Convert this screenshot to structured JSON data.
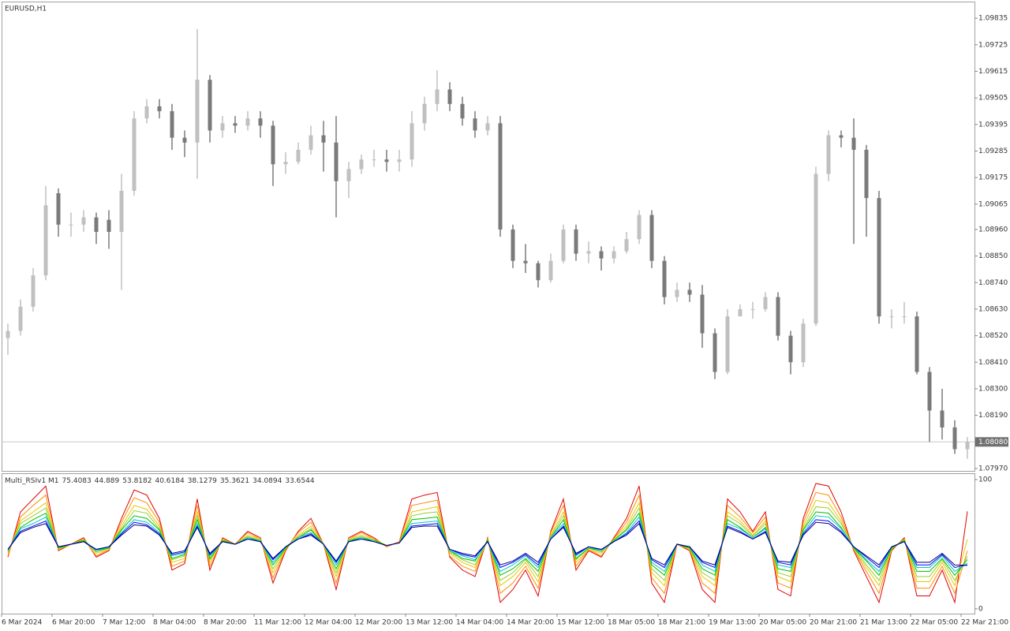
{
  "chart_data": [
    {
      "type": "candlestick",
      "title": "EURUSD,H1",
      "up_color": "#c0c0c0",
      "down_color": "#7a7a7a",
      "grid": false,
      "categories": [
        "6 Mar 2024",
        null,
        null,
        null,
        "6 Mar 20:00",
        null,
        null,
        null,
        "7 Mar 12:00",
        null,
        null,
        null,
        "8 Mar 04:00",
        null,
        null,
        null,
        "8 Mar 20:00",
        null,
        null,
        null,
        "11 Mar 12:00",
        null,
        null,
        null,
        "12 Mar 04:00",
        null,
        null,
        null,
        "12 Mar 20:00",
        null,
        null,
        null,
        "13 Mar 12:00",
        null,
        null,
        null,
        "14 Mar 04:00",
        null,
        null,
        null,
        "14 Mar 20:00",
        null,
        null,
        null,
        "15 Mar 12:00",
        null,
        null,
        null,
        "18 Mar 05:00",
        null,
        null,
        null,
        "18 Mar 21:00",
        null,
        null,
        null,
        "19 Mar 13:00",
        null,
        null,
        null,
        "20 Mar 05:00",
        null,
        null,
        null,
        "20 Mar 21:00",
        null,
        null,
        null,
        "21 Mar 13:00",
        null,
        null,
        null,
        "22 Mar 05:00",
        null,
        null,
        null,
        "22 Mar 21:00"
      ],
      "open": [
        1.0851,
        1.0854,
        1.0864,
        1.0877,
        1.0911,
        1.0898,
        1.0898,
        1.0901,
        1.09,
        1.0895,
        1.0912,
        1.0942,
        1.0947,
        1.0945,
        1.0934,
        1.0932,
        1.0958,
        1.0937,
        1.094,
        1.0939,
        1.0942,
        1.0939,
        1.0923,
        1.0924,
        1.0929,
        1.0935,
        1.0932,
        1.0916,
        1.0921,
        1.0925,
        1.0925,
        1.0924,
        1.0925,
        1.094,
        1.0948,
        1.0954,
        1.0948,
        1.0942,
        1.0937,
        1.094,
        1.0896,
        1.0883,
        1.0882,
        1.0875,
        1.0883,
        1.0896,
        1.0886,
        1.0887,
        1.0884,
        1.0887,
        1.0892,
        1.0902,
        1.0883,
        1.0868,
        1.0871,
        1.0869,
        1.0853,
        1.0837,
        1.086,
        1.0863,
        1.0863,
        1.0868,
        1.0852,
        1.0841,
        1.0857,
        1.0919,
        1.0935,
        1.0934,
        1.0929,
        1.0909,
        1.086,
        1.086,
        1.086,
        1.0837,
        1.0821,
        1.0814,
        1.0805
      ],
      "high": [
        1.0857,
        1.0867,
        1.088,
        1.0914,
        1.0913,
        1.0903,
        1.0904,
        1.0903,
        1.0904,
        1.0919,
        1.0945,
        1.095,
        1.095,
        1.0948,
        1.0937,
        1.0979,
        1.096,
        1.0943,
        1.0943,
        1.0945,
        1.0945,
        1.0941,
        1.0928,
        1.0932,
        1.0939,
        1.0941,
        1.0943,
        1.0924,
        1.0927,
        1.0929,
        1.0929,
        1.0929,
        1.0945,
        1.0951,
        1.0962,
        1.0957,
        1.0951,
        1.0945,
        1.0943,
        1.0943,
        1.0898,
        1.089,
        1.0883,
        1.0886,
        1.0898,
        1.0898,
        1.0891,
        1.0889,
        1.0889,
        1.0895,
        1.0904,
        1.0904,
        1.0885,
        1.0874,
        1.0874,
        1.0873,
        1.0855,
        1.0863,
        1.0865,
        1.0866,
        1.087,
        1.087,
        1.0854,
        1.0859,
        1.0922,
        1.0937,
        1.0937,
        1.0942,
        1.0931,
        1.0912,
        1.0863,
        1.0866,
        1.0862,
        1.0839,
        1.083,
        1.0817,
        1.081
      ],
      "low": [
        1.0844,
        1.0852,
        1.0862,
        1.0875,
        1.0893,
        1.0893,
        1.0895,
        1.089,
        1.0888,
        1.0871,
        1.091,
        1.094,
        1.0942,
        1.0929,
        1.0926,
        1.0917,
        1.0932,
        1.0934,
        1.0936,
        1.0937,
        1.0934,
        1.0914,
        1.0919,
        1.0923,
        1.0927,
        1.092,
        1.0901,
        1.0909,
        1.0919,
        1.0922,
        1.092,
        1.092,
        1.0922,
        1.0937,
        1.0945,
        1.0945,
        1.0939,
        1.0934,
        1.0935,
        1.0893,
        1.088,
        1.0878,
        1.0872,
        1.0874,
        1.0882,
        1.0883,
        1.0882,
        1.0879,
        1.0882,
        1.0886,
        1.089,
        1.088,
        1.0865,
        1.0866,
        1.0866,
        1.0847,
        1.0834,
        1.0836,
        1.086,
        1.0859,
        1.0862,
        1.085,
        1.0836,
        1.0839,
        1.0856,
        1.0916,
        1.093,
        1.089,
        1.0893,
        1.0857,
        1.0855,
        1.0857,
        1.0836,
        1.0808,
        1.0809,
        1.0803,
        1.0801
      ],
      "close": [
        1.0854,
        1.0864,
        1.0877,
        1.0906,
        1.0898,
        1.0898,
        1.0901,
        1.0895,
        1.0895,
        1.0912,
        1.0942,
        1.0947,
        1.0945,
        1.0934,
        1.0932,
        1.0958,
        1.0937,
        1.094,
        1.0939,
        1.0942,
        1.0939,
        1.0923,
        1.0924,
        1.0929,
        1.0935,
        1.0932,
        1.0916,
        1.0921,
        1.0925,
        1.0925,
        1.0924,
        1.0925,
        1.094,
        1.0948,
        1.0954,
        1.0948,
        1.0942,
        1.0937,
        1.094,
        1.0896,
        1.0883,
        1.0882,
        1.0875,
        1.0883,
        1.0896,
        1.0886,
        1.0887,
        1.0884,
        1.0887,
        1.0892,
        1.0902,
        1.0883,
        1.0868,
        1.0871,
        1.0869,
        1.0853,
        1.0837,
        1.086,
        1.0863,
        1.0863,
        1.0868,
        1.0852,
        1.0841,
        1.0857,
        1.0919,
        1.0935,
        1.0934,
        1.0929,
        1.0909,
        1.086,
        1.086,
        1.086,
        1.0837,
        1.0821,
        1.0814,
        1.0805,
        1.0808
      ],
      "ylim": [
        1.0796,
        1.09904
      ],
      "yticks": [
        {
          "value": 1.09835,
          "label": "1.09835"
        },
        {
          "value": 1.09725,
          "label": "1.09725"
        },
        {
          "value": 1.09615,
          "label": "1.09615"
        },
        {
          "value": 1.09505,
          "label": "1.09505"
        },
        {
          "value": 1.09395,
          "label": "1.09395"
        },
        {
          "value": 1.09285,
          "label": "1.09285"
        },
        {
          "value": 1.09175,
          "label": "1.09175"
        },
        {
          "value": 1.09065,
          "label": "1.09065"
        },
        {
          "value": 1.0896,
          "label": "1.08960"
        },
        {
          "value": 1.0885,
          "label": "1.08850"
        },
        {
          "value": 1.0874,
          "label": "1.08740"
        },
        {
          "value": 1.0863,
          "label": "1.08630"
        },
        {
          "value": 1.0852,
          "label": "1.08520"
        },
        {
          "value": 1.0841,
          "label": "1.08410"
        },
        {
          "value": 1.083,
          "label": "1.08300"
        },
        {
          "value": 1.0819,
          "label": "1.08190"
        },
        {
          "value": 1.0797,
          "label": "1.07970"
        }
      ],
      "current_price": {
        "value": 1.0808,
        "label": "1.08080"
      }
    },
    {
      "type": "line",
      "title": "Multi_RSIv1 M1",
      "ylim": [
        -3.7,
        104.9
      ],
      "yticks": [
        100,
        0
      ],
      "series": [
        {
          "color": "#e00000",
          "values": [
            40,
            75,
            85,
            95,
            45,
            50,
            55,
            40,
            45,
            70,
            92,
            88,
            70,
            30,
            35,
            85,
            30,
            55,
            50,
            60,
            55,
            20,
            45,
            60,
            70,
            50,
            15,
            55,
            60,
            55,
            48,
            52,
            85,
            88,
            90,
            40,
            30,
            25,
            55,
            5,
            15,
            30,
            10,
            60,
            85,
            30,
            45,
            40,
            55,
            70,
            95,
            20,
            5,
            50,
            45,
            15,
            5,
            85,
            75,
            60,
            75,
            15,
            10,
            70,
            97,
            95,
            75,
            45,
            25,
            5,
            45,
            55,
            10,
            10,
            30,
            5,
            75.4083
          ]
        },
        {
          "color": "#ff8c00",
          "values": [
            41,
            71,
            80,
            88,
            46,
            50,
            54,
            41,
            46,
            67,
            86,
            82,
            67,
            33,
            37,
            80,
            33,
            54,
            50,
            59,
            54,
            24,
            46,
            59,
            67,
            50,
            20,
            54,
            59,
            54,
            48,
            52,
            80,
            82,
            84,
            41,
            33,
            29,
            54,
            12,
            20,
            33,
            16,
            59,
            80,
            33,
            46,
            41,
            54,
            67,
            88,
            24,
            12,
            50,
            46,
            20,
            12,
            80,
            71,
            59,
            71,
            20,
            16,
            67,
            90,
            88,
            71,
            46,
            29,
            12,
            46,
            54,
            16,
            16,
            33,
            12,
            44.889
          ]
        },
        {
          "color": "#e6c800",
          "values": [
            43,
            68,
            75,
            82,
            46,
            50,
            54,
            43,
            46,
            64,
            80,
            77,
            64,
            36,
            39,
            75,
            36,
            54,
            50,
            57,
            54,
            28,
            46,
            57,
            64,
            50,
            25,
            54,
            57,
            54,
            49,
            51,
            75,
            77,
            79,
            43,
            36,
            32,
            54,
            18,
            25,
            36,
            21,
            57,
            75,
            36,
            46,
            43,
            54,
            64,
            82,
            28,
            18,
            50,
            46,
            25,
            18,
            75,
            68,
            57,
            68,
            25,
            21,
            64,
            84,
            82,
            68,
            46,
            32,
            18,
            46,
            54,
            21,
            21,
            36,
            18,
            53.8182
          ]
        },
        {
          "color": "#9acd32",
          "values": [
            44,
            66,
            72,
            78,
            47,
            50,
            53,
            44,
            47,
            62,
            76,
            74,
            62,
            38,
            41,
            72,
            38,
            53,
            50,
            56,
            53,
            31,
            47,
            56,
            62,
            50,
            28,
            53,
            56,
            53,
            49,
            51,
            72,
            74,
            75,
            44,
            38,
            34,
            53,
            22,
            28,
            38,
            25,
            56,
            72,
            38,
            47,
            44,
            53,
            62,
            78,
            31,
            22,
            50,
            47,
            28,
            22,
            72,
            66,
            56,
            66,
            28,
            25,
            62,
            79,
            78,
            66,
            47,
            34,
            22,
            47,
            53,
            25,
            25,
            38,
            22,
            40.6184
          ]
        },
        {
          "color": "#00c000",
          "values": [
            45,
            63,
            69,
            74,
            47,
            50,
            53,
            45,
            47,
            61,
            72,
            70,
            61,
            39,
            42,
            69,
            39,
            53,
            50,
            55,
            53,
            34,
            47,
            55,
            61,
            50,
            31,
            53,
            55,
            53,
            49,
            51,
            69,
            70,
            71,
            45,
            39,
            37,
            53,
            26,
            31,
            39,
            29,
            55,
            69,
            39,
            47,
            45,
            53,
            61,
            74,
            34,
            26,
            50,
            47,
            31,
            26,
            69,
            63,
            55,
            63,
            31,
            29,
            61,
            75,
            74,
            63,
            47,
            37,
            26,
            47,
            53,
            29,
            29,
            39,
            26,
            38.1279
          ]
        },
        {
          "color": "#00c8c8",
          "values": [
            45,
            62,
            66,
            71,
            48,
            50,
            52,
            45,
            48,
            59,
            69,
            67,
            59,
            41,
            43,
            66,
            41,
            52,
            50,
            55,
            52,
            36,
            48,
            55,
            59,
            50,
            34,
            52,
            55,
            52,
            49,
            51,
            66,
            67,
            68,
            45,
            41,
            38,
            52,
            29,
            34,
            41,
            32,
            55,
            66,
            41,
            48,
            45,
            52,
            59,
            71,
            36,
            29,
            50,
            48,
            34,
            29,
            66,
            62,
            55,
            62,
            34,
            32,
            59,
            72,
            71,
            62,
            48,
            38,
            29,
            48,
            52,
            32,
            32,
            41,
            29,
            35.3621
          ]
        },
        {
          "color": "#0000ff",
          "values": [
            46,
            60,
            64,
            68,
            48,
            50,
            52,
            46,
            48,
            58,
            67,
            65,
            58,
            42,
            44,
            64,
            42,
            52,
            50,
            54,
            52,
            38,
            48,
            54,
            58,
            50,
            36,
            52,
            54,
            52,
            49,
            51,
            64,
            65,
            66,
            46,
            42,
            40,
            52,
            32,
            36,
            42,
            34,
            54,
            64,
            42,
            48,
            46,
            52,
            58,
            68,
            38,
            32,
            50,
            48,
            36,
            32,
            64,
            60,
            54,
            60,
            36,
            34,
            58,
            69,
            68,
            60,
            48,
            40,
            32,
            48,
            52,
            34,
            34,
            42,
            32,
            34.0894
          ]
        },
        {
          "color": "#000080",
          "values": [
            46,
            59,
            63,
            66,
            48,
            50,
            52,
            46,
            48,
            57,
            65,
            64,
            57,
            43,
            45,
            63,
            43,
            52,
            50,
            54,
            52,
            39,
            48,
            54,
            57,
            50,
            37,
            52,
            54,
            52,
            49,
            51,
            63,
            64,
            64,
            46,
            43,
            41,
            52,
            34,
            37,
            43,
            36,
            54,
            63,
            43,
            48,
            46,
            52,
            57,
            66,
            39,
            34,
            50,
            48,
            37,
            34,
            63,
            59,
            54,
            59,
            37,
            36,
            57,
            67,
            66,
            59,
            48,
            41,
            34,
            48,
            52,
            36,
            36,
            43,
            34,
            33.6544
          ]
        }
      ]
    }
  ]
}
